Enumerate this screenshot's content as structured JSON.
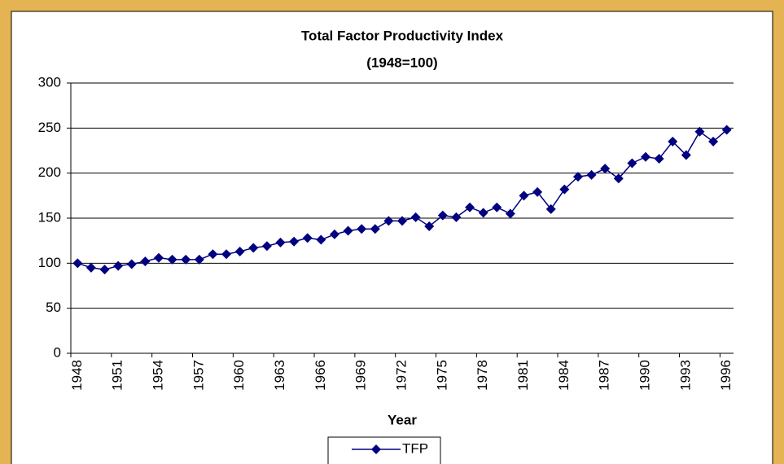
{
  "chart_data": {
    "type": "line",
    "title": "Total Factor Productivity Index",
    "subtitle": "(1948=100)",
    "x_label": "Year",
    "categories": [
      "1948",
      null,
      null,
      "1951",
      null,
      null,
      "1954",
      null,
      null,
      "1957",
      null,
      null,
      "1960",
      null,
      null,
      "1963",
      null,
      null,
      "1966",
      null,
      null,
      "1969",
      null,
      null,
      "1972",
      null,
      null,
      "1975",
      null,
      null,
      "1978",
      null,
      null,
      "1981",
      null,
      null,
      "1984",
      null,
      null,
      "1987",
      null,
      null,
      "1990",
      null,
      null,
      "1993",
      null,
      null,
      "1996"
    ],
    "series": [
      {
        "name": "TFP",
        "color": "#000080",
        "values": [
          100,
          95,
          93,
          97,
          99,
          102,
          106,
          104,
          104,
          104,
          110,
          110,
          113,
          117,
          119,
          123,
          124,
          128,
          126,
          132,
          136,
          138,
          138,
          147,
          147,
          151,
          141,
          153,
          151,
          162,
          156,
          162,
          155,
          175,
          179,
          160,
          182,
          196,
          198,
          205,
          194,
          211,
          218,
          216,
          235,
          220,
          246,
          235,
          248
        ]
      }
    ],
    "ylim": [
      0,
      300
    ],
    "yticks": [
      0,
      50,
      100,
      150,
      200,
      250,
      300
    ],
    "grid": true,
    "legend": "bottom"
  }
}
